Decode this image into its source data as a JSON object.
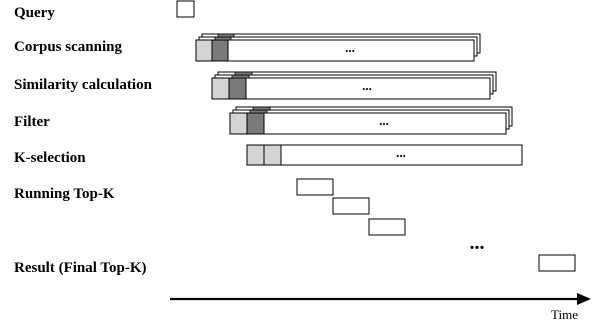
{
  "stages": [
    {
      "id": "query",
      "label": "Query"
    },
    {
      "id": "corpus-scanning",
      "label": "Corpus scanning"
    },
    {
      "id": "similarity-calculation",
      "label": "Similarity calculation"
    },
    {
      "id": "filter",
      "label": "Filter"
    },
    {
      "id": "k-selection",
      "label": "K-selection"
    },
    {
      "id": "running-top-k",
      "label": "Running Top-K"
    },
    {
      "id": "result",
      "label": "Result (Final Top-K)"
    }
  ],
  "ellipsis": "...",
  "running_ellipsis": "...",
  "time_axis": {
    "label": "Time"
  },
  "colors": {
    "light_gray": "#d4d4d4",
    "dark_gray": "#7a7a7a",
    "stroke": "#000000"
  }
}
